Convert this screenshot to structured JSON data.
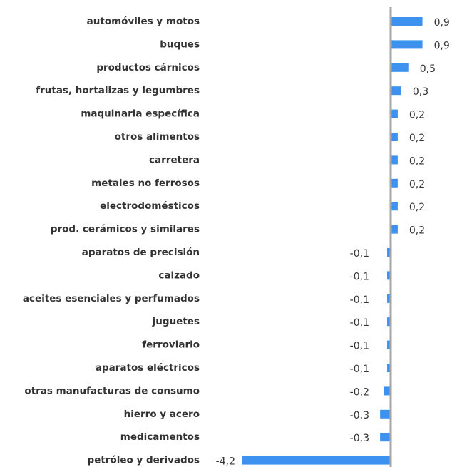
{
  "chart_data": {
    "type": "bar",
    "orientation": "horizontal",
    "color": "#3d92ef",
    "categories": [
      "automóviles y motos",
      "buques",
      "productos cárnicos",
      "frutas, hortalizas y legumbres",
      "maquinaria específica",
      "otros alimentos",
      "carretera",
      "metales no ferrosos",
      "electrodomésticos",
      "prod. cerámicos y similares",
      "aparatos de precisión",
      "calzado",
      "aceites esenciales y perfumados",
      "juguetes",
      "ferroviario",
      "aparatos eléctricos",
      "otras manufacturas de consumo",
      "hierro y acero",
      "medicamentos",
      "petróleo y derivados"
    ],
    "values": [
      0.9,
      0.9,
      0.5,
      0.3,
      0.2,
      0.2,
      0.2,
      0.2,
      0.2,
      0.2,
      -0.1,
      -0.1,
      -0.1,
      -0.1,
      -0.1,
      -0.1,
      -0.2,
      -0.3,
      -0.3,
      -4.2
    ],
    "value_labels": [
      "0,9",
      "0,9",
      "0,5",
      "0,3",
      "0,2",
      "0,2",
      "0,2",
      "0,2",
      "0,2",
      "0,2",
      "-0,1",
      "-0,1",
      "-0,1",
      "-0,1",
      "-0,1",
      "-0,1",
      "-0,2",
      "-0,3",
      "-0,3",
      "-4,2"
    ]
  }
}
